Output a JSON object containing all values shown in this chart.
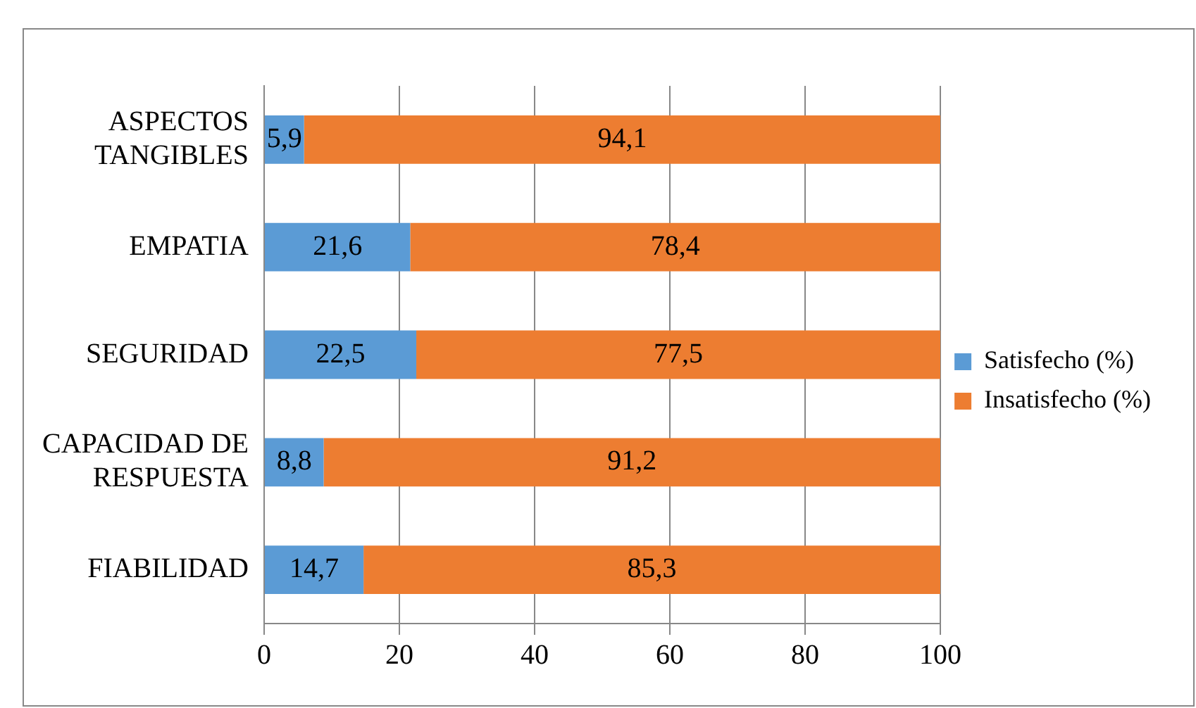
{
  "chart_data": {
    "type": "bar",
    "orientation": "horizontal",
    "stacked": true,
    "categories": [
      "ASPECTOS TANGIBLES",
      "EMPATIA",
      "SEGURIDAD",
      "CAPACIDAD DE RESPUESTA",
      "FIABILIDAD"
    ],
    "series": [
      {
        "name": "Satisfecho (%)",
        "color": "#5b9bd5",
        "values": [
          5.9,
          21.6,
          22.5,
          8.8,
          14.7
        ],
        "value_labels": [
          "5,9",
          "21,6",
          "22,5",
          "8,8",
          "14,7"
        ]
      },
      {
        "name": "Insatisfecho (%)",
        "color": "#ed7d31",
        "values": [
          94.1,
          78.4,
          77.5,
          91.2,
          85.3
        ],
        "value_labels": [
          "94,1",
          "78,4",
          "77,5",
          "91,2",
          "85,3"
        ]
      }
    ],
    "xlim": [
      0,
      100
    ],
    "xticks": [
      0,
      20,
      40,
      60,
      80,
      100
    ],
    "grid": "x",
    "legend": "right"
  }
}
